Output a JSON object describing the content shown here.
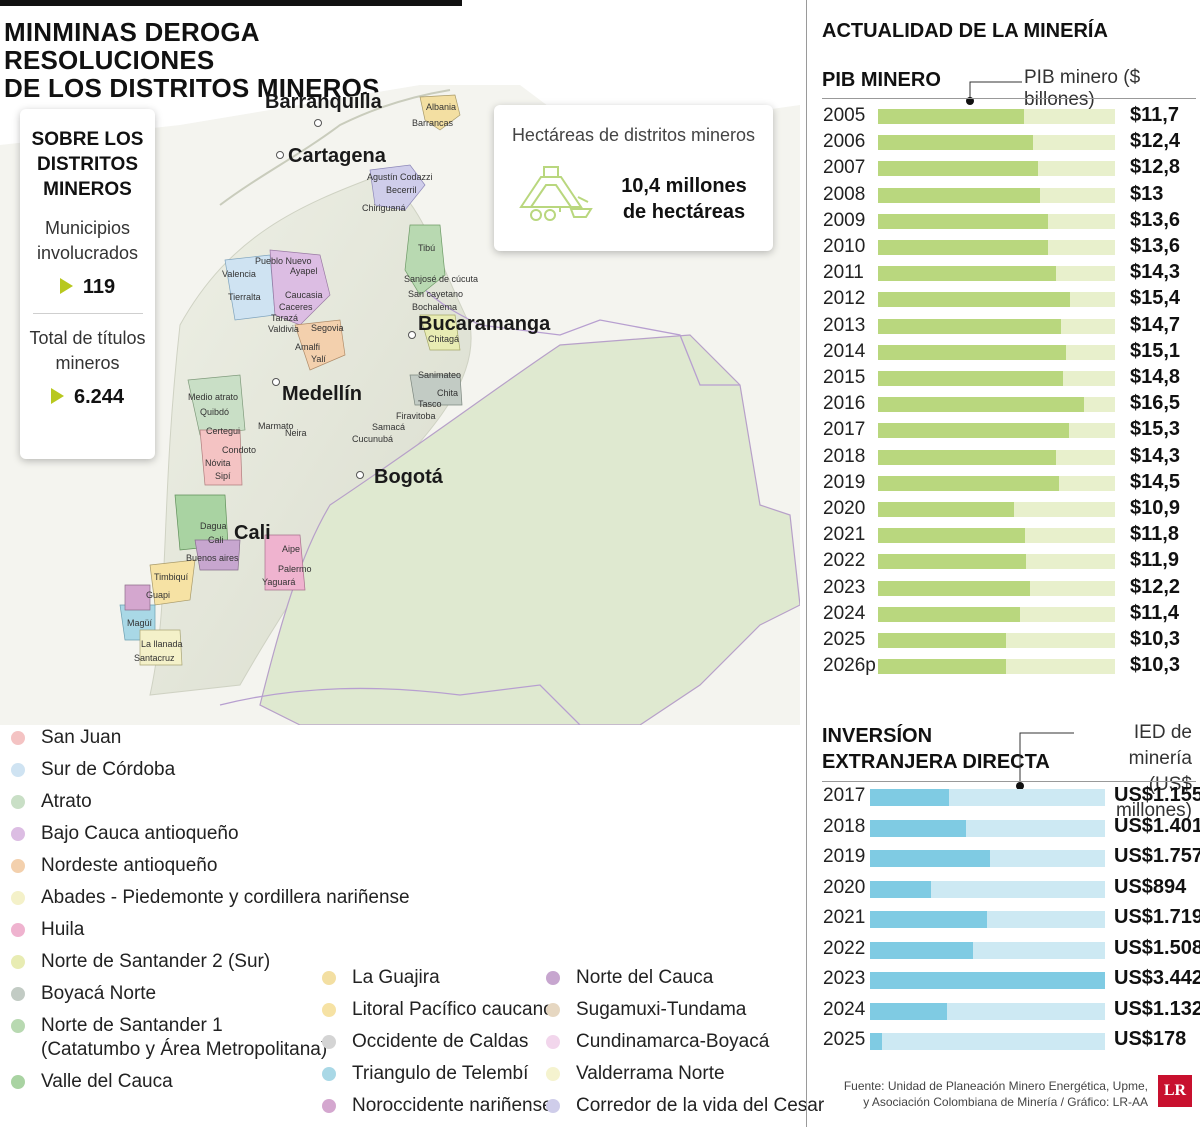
{
  "title": [
    "MINMINAS DEROGA RESOLUCIONES",
    "DE LOS DISTRITOS MINEROS"
  ],
  "districts_card": {
    "heading": [
      "SOBRE LOS",
      "DISTRITOS",
      "MINEROS"
    ],
    "municipios_label": [
      "Municipios",
      "involucrados"
    ],
    "municipios_value": "119",
    "titulos_label": [
      "Total de títulos",
      "mineros"
    ],
    "titulos_value": "6.244",
    "accent_color": "#b8c81e"
  },
  "hectares_card": {
    "label": "Hectáreas de distritos mineros",
    "value": [
      "10,4 millones",
      "de hectáreas"
    ],
    "icon": "mining-equipment-icon"
  },
  "map": {
    "cities": [
      "Barranquilla",
      "Cartagena",
      "Bucaramanga",
      "Medellín",
      "Bogotá",
      "Cali"
    ],
    "municipalities": [
      "Albania",
      "Barrancas",
      "Agustín Codazzi",
      "Becerril",
      "Chiriguaná",
      "Tibú",
      "Sanjosé de cúcuta",
      "San cayetano",
      "Bochalema",
      "Chitagá",
      "Pueblo Nuevo",
      "Ayapel",
      "Valencia",
      "Tierralta",
      "Caucasia",
      "Caceres",
      "Tarazá",
      "Valdivia",
      "Segovia",
      "Amalfi",
      "Yalí",
      "Medio atrato",
      "Quibdó",
      "Certegui",
      "Condoto",
      "Nóvita",
      "Sipí",
      "Marmato",
      "Neira",
      "Sanimateo",
      "Chita",
      "Tasco",
      "Firavitoba",
      "Samacá",
      "Cucunubá",
      "Dagua",
      "Cali",
      "Buenos aires",
      "Timbiquí",
      "Guapi",
      "Aipe",
      "Palermo",
      "Yaguará",
      "Magüí",
      "La llanada",
      "Santacruz"
    ]
  },
  "legend": {
    "col1": [
      {
        "label": "San Juan",
        "color": "#f4c3c3"
      },
      {
        "label": "Sur de Córdoba",
        "color": "#cfe3f2"
      },
      {
        "label": "Atrato",
        "color": "#c9dfc6"
      },
      {
        "label": "Bajo Cauca antioqueño",
        "color": "#dcbde3"
      },
      {
        "label": "Nordeste antioqueño",
        "color": "#f3d0ad"
      },
      {
        "label": "Abades - Piedemonte y cordillera nariñense",
        "color": "#f4f1c9"
      },
      {
        "label": "Huila",
        "color": "#efb3cf"
      },
      {
        "label": "Norte de Santander 2 (Sur)",
        "color": "#e8ecb3"
      },
      {
        "label": "Boyacá Norte",
        "color": "#c2cbc4"
      },
      {
        "label": "Norte de Santander 1",
        "color": "#b8d9b1"
      },
      {
        "label": "(Catatumbo y Área Metropolitana)",
        "color": ""
      },
      {
        "label": "Valle del Cauca",
        "color": "#a9d3a2"
      }
    ],
    "col2": [
      {
        "label": "La Guajira",
        "color": "#f3dfa2"
      },
      {
        "label": "Litoral Pacífico caucano",
        "color": "#f6e2a4"
      },
      {
        "label": "Occidente de Caldas",
        "color": "#d4d4d4"
      },
      {
        "label": "Triangulo de Telembí",
        "color": "#a9d8e6"
      },
      {
        "label": "Noroccidente nariñense",
        "color": "#d4a7cf"
      }
    ],
    "col3": [
      {
        "label": "Norte del Cauca",
        "color": "#c7a6cf"
      },
      {
        "label": "Sugamuxi-Tundama",
        "color": "#e6d7c1"
      },
      {
        "label": "Cundinamarca-Boyacá",
        "color": "#f2d6ec"
      },
      {
        "label": "Valderrama Norte",
        "color": "#f5f3cf"
      },
      {
        "label": "Corredor de la vida del Cesar",
        "color": "#cfcdea"
      }
    ]
  },
  "right_title": "ACTUALIDAD DE LA MINERÍA",
  "chart_data": [
    {
      "type": "bar",
      "title": "PIB MINERO",
      "series_note": "PIB minero ($ billones)",
      "categories": [
        "2005",
        "2006",
        "2007",
        "2008",
        "2009",
        "2010",
        "2011",
        "2012",
        "2013",
        "2014",
        "2015",
        "2016",
        "2017",
        "2018",
        "2019",
        "2020",
        "2021",
        "2022",
        "2023",
        "2024",
        "2025",
        "2026p"
      ],
      "values": [
        11.7,
        12.4,
        12.8,
        13,
        13.6,
        13.6,
        14.3,
        15.4,
        14.7,
        15.1,
        14.8,
        16.5,
        15.3,
        14.3,
        14.5,
        10.9,
        11.8,
        11.9,
        12.2,
        11.4,
        10.3,
        10.3
      ],
      "value_labels": [
        "$11,7",
        "$12,4",
        "$12,8",
        "$13",
        "$13,6",
        "$13,6",
        "$14,3",
        "$15,4",
        "$14,7",
        "$15,1",
        "$14,8",
        "$16,5",
        "$15,3",
        "$14,3",
        "$14,5",
        "$10,9",
        "$11,8",
        "$11,9",
        "$12,2",
        "$11,4",
        "$10,3",
        "$10,3"
      ],
      "xlim": [
        0,
        19
      ],
      "fill_color": "#b9d77e",
      "track_color": "#e8f0cc"
    },
    {
      "type": "bar",
      "title": [
        "INVERSÍON",
        "EXTRANJERA DIRECTA"
      ],
      "series_note": [
        "IED de minería",
        "(US$ millones)"
      ],
      "categories": [
        "2017",
        "2018",
        "2019",
        "2020",
        "2021",
        "2022",
        "2023",
        "2024",
        "2025"
      ],
      "values": [
        1155,
        1401,
        1757,
        894,
        1719,
        1508,
        3442,
        1132,
        178
      ],
      "value_labels": [
        "US$1.155",
        "US$1.401",
        "US$1.757",
        "US$894",
        "US$1.719",
        "US$1.508",
        "US$3.442",
        "US$1.132",
        "US$178"
      ],
      "xlim": [
        0,
        3442
      ],
      "fill_color": "#7fcbe3",
      "track_color": "#cde9f3"
    }
  ],
  "source": [
    "Fuente: Unidad de Planeación Minero Energética, Upme,",
    "y Asociación Colombiana de Minería / Gráfico: LR-AA"
  ],
  "logo": "LR"
}
